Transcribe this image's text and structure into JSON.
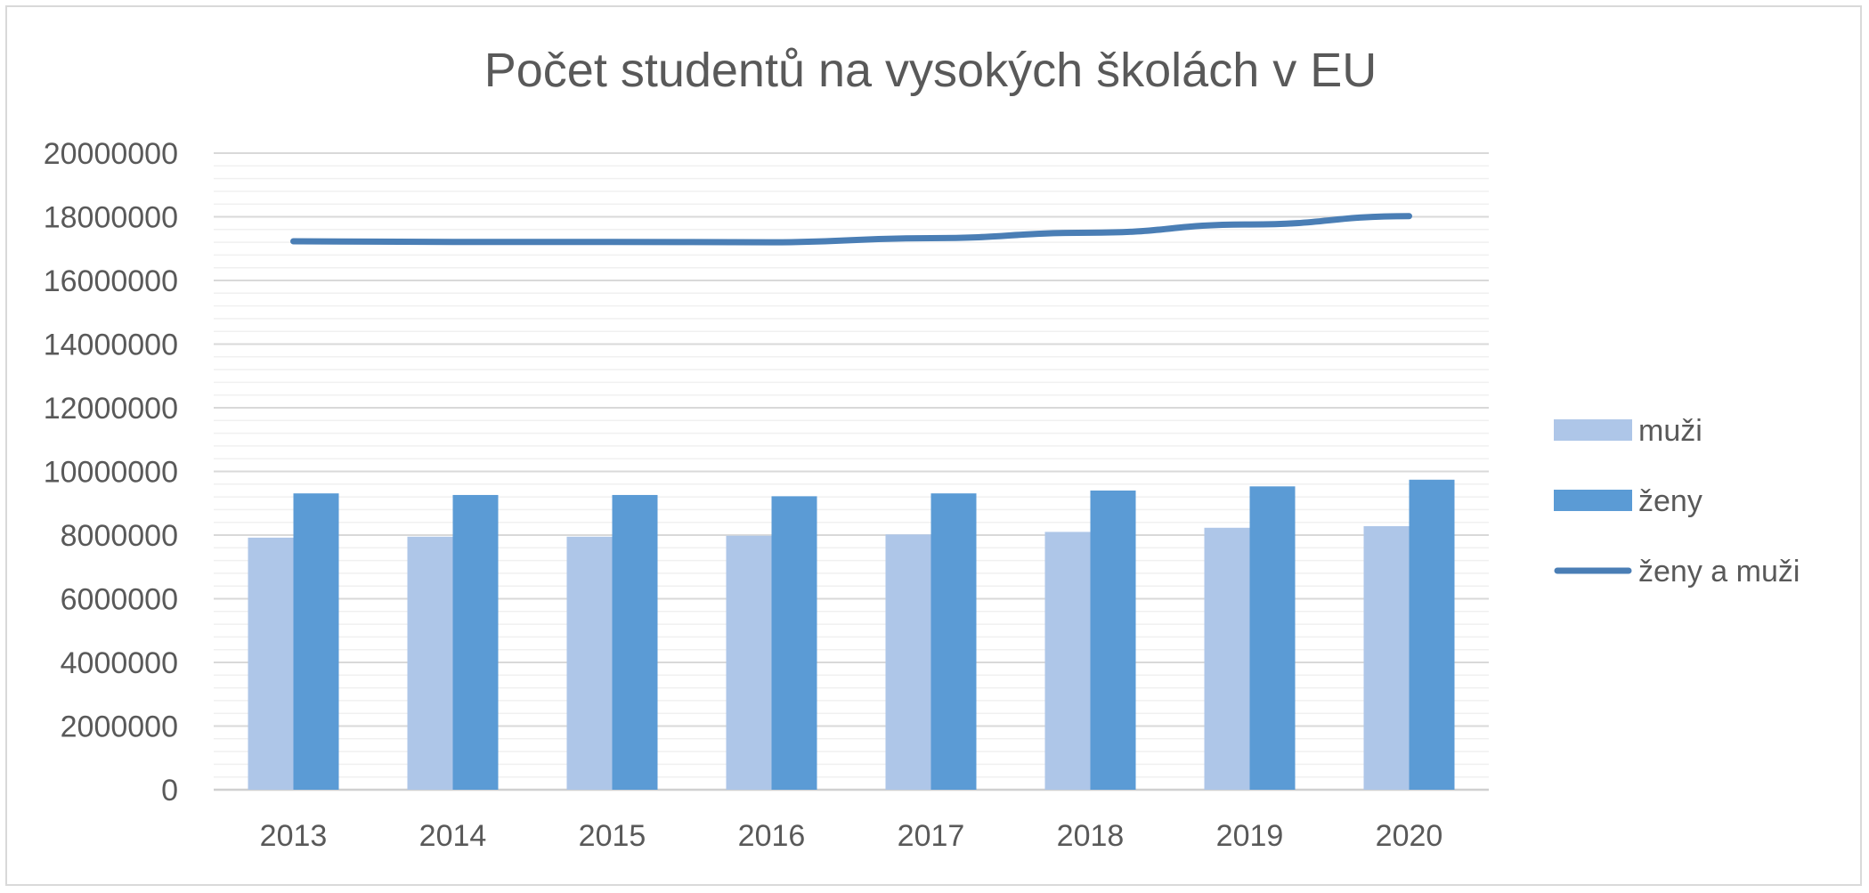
{
  "chart_data": {
    "type": "bar",
    "title": "Počet studentů na vysokých školách v EU",
    "xlabel": "",
    "ylabel": "",
    "categories": [
      "2013",
      "2014",
      "2015",
      "2016",
      "2017",
      "2018",
      "2019",
      "2020"
    ],
    "ylim": [
      0,
      20000000
    ],
    "yticks": [
      "0",
      "2000000",
      "4000000",
      "6000000",
      "8000000",
      "10000000",
      "12000000",
      "14000000",
      "16000000",
      "18000000",
      "20000000"
    ],
    "minor_grid_step": 400000,
    "grid": true,
    "legend_position": "right",
    "series": [
      {
        "name": "muži",
        "kind": "bar",
        "color": "#aec6e8",
        "values": [
          7920000,
          7950000,
          7950000,
          7980000,
          8020000,
          8100000,
          8230000,
          8280000
        ]
      },
      {
        "name": "ženy",
        "kind": "bar",
        "color": "#5b9bd5",
        "values": [
          9310000,
          9260000,
          9260000,
          9220000,
          9310000,
          9400000,
          9530000,
          9740000
        ]
      },
      {
        "name": "ženy a muži",
        "kind": "line",
        "color": "#4a7eb5",
        "values": [
          17230000,
          17210000,
          17210000,
          17200000,
          17330000,
          17500000,
          17760000,
          18020000
        ]
      }
    ]
  }
}
